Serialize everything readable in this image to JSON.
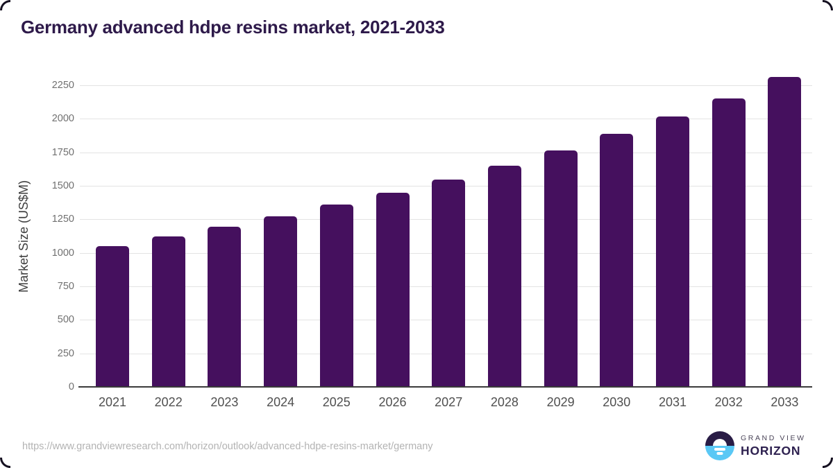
{
  "title": "Germany advanced hdpe resins market, 2021-2033",
  "source_url": "https://www.grandviewresearch.com/horizon/outlook/advanced-hdpe-resins-market/germany",
  "logo": {
    "line1": "GRAND VIEW",
    "line2": "HORIZON"
  },
  "colors": {
    "bar": "#45105e",
    "title": "#2e1a4a",
    "grid": "#e3e3e3",
    "axis_line": "#3a3a3a",
    "tick": "#707070",
    "xtick": "#4f4f4f",
    "axis_title": "#3e3e3e",
    "url": "#b3b3b3",
    "logo_dark": "#291c45",
    "logo_blue": "#5ac8f5",
    "logo_text1": "#4a4458",
    "logo_text2": "#2e2150",
    "frame": "#151020"
  },
  "chart_data": {
    "type": "bar",
    "title": "Germany advanced hdpe resins market, 2021-2033",
    "categories": [
      "2021",
      "2022",
      "2023",
      "2024",
      "2025",
      "2026",
      "2027",
      "2028",
      "2029",
      "2030",
      "2031",
      "2032",
      "2033"
    ],
    "values": [
      1050,
      1120,
      1195,
      1275,
      1360,
      1450,
      1545,
      1650,
      1765,
      1890,
      2015,
      2150,
      2310
    ],
    "xlabel": "",
    "ylabel": "Market Size (US$M)",
    "ylim": [
      0,
      2325
    ],
    "ytick_max": 2250,
    "ytick_step": 250,
    "grid": true,
    "legend": false
  }
}
